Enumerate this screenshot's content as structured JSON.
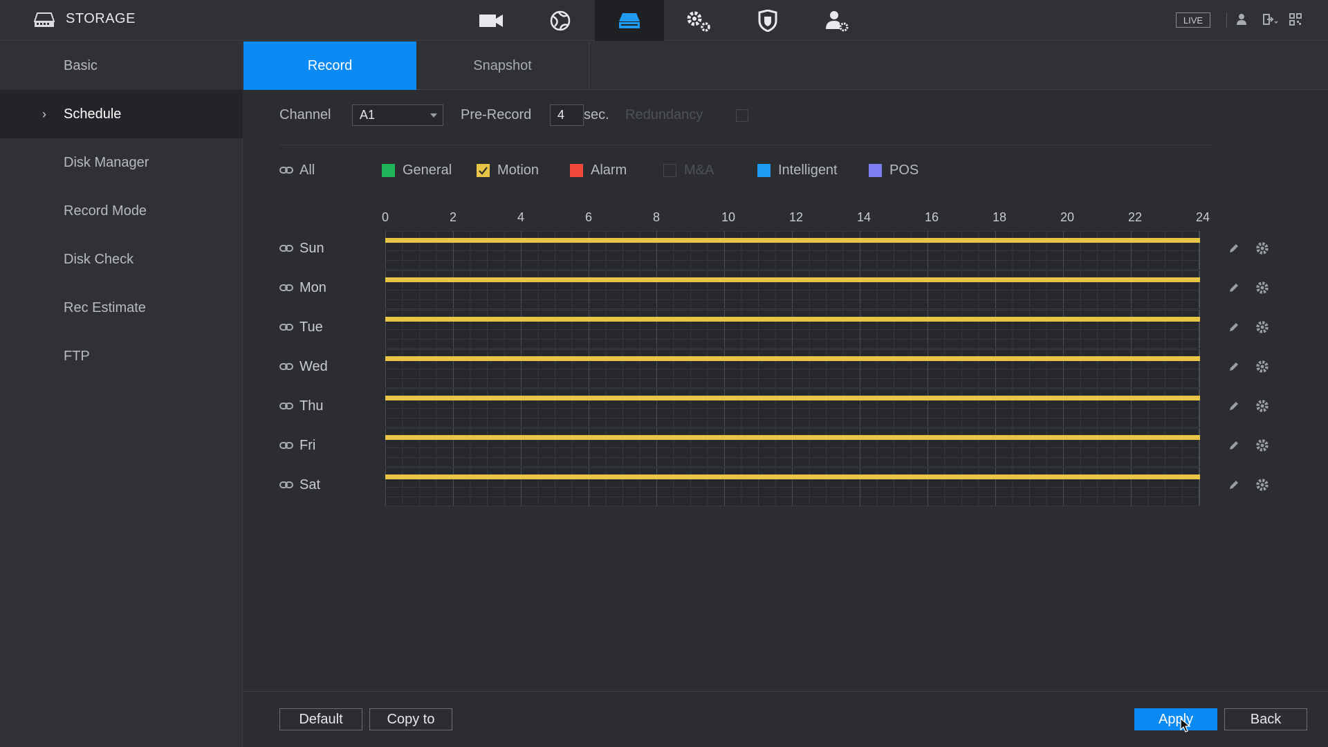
{
  "header": {
    "title": "STORAGE",
    "live_label": "LIVE",
    "nav_icons": [
      "camera-icon",
      "network-icon",
      "storage-icon",
      "system-settings-icon",
      "security-shield-icon",
      "account-icon"
    ],
    "active_nav": "storage-icon"
  },
  "sidebar": {
    "items": [
      {
        "label": "Basic"
      },
      {
        "label": "Schedule",
        "active": true
      },
      {
        "label": "Disk Manager"
      },
      {
        "label": "Record Mode"
      },
      {
        "label": "Disk Check"
      },
      {
        "label": "Rec Estimate"
      },
      {
        "label": "FTP"
      }
    ]
  },
  "tabs": [
    {
      "label": "Record",
      "active": true
    },
    {
      "label": "Snapshot"
    }
  ],
  "settings": {
    "channel_label": "Channel",
    "channel_value": "A1",
    "prerecord_label": "Pre-Record",
    "prerecord_value": "4",
    "prerecord_unit": "sec.",
    "redundancy_label": "Redundancy"
  },
  "legend": {
    "all_label": "All",
    "items": [
      {
        "label": "General",
        "color": "#1fb45a",
        "checked": false
      },
      {
        "label": "Motion",
        "color": "#e8c547",
        "checked": true
      },
      {
        "label": "Alarm",
        "color": "#f04a3a",
        "checked": false
      },
      {
        "label": "M&A",
        "color": "#2b2d31",
        "checked": false,
        "disabled": true
      },
      {
        "label": "Intelligent",
        "color": "#1e9bf0",
        "checked": false
      },
      {
        "label": "POS",
        "color": "#7d7ff0",
        "checked": false
      }
    ]
  },
  "hours": [
    "0",
    "2",
    "4",
    "6",
    "8",
    "10",
    "12",
    "14",
    "16",
    "18",
    "20",
    "22",
    "24"
  ],
  "schedule": {
    "days": [
      "Sun",
      "Mon",
      "Tue",
      "Wed",
      "Thu",
      "Fri",
      "Sat"
    ],
    "record_type": "Motion",
    "record_color": "#e8c547",
    "range_start_hour": 0,
    "range_end_hour": 24
  },
  "footer": {
    "default_label": "Default",
    "copy_label": "Copy to",
    "apply_label": "Apply",
    "back_label": "Back"
  }
}
